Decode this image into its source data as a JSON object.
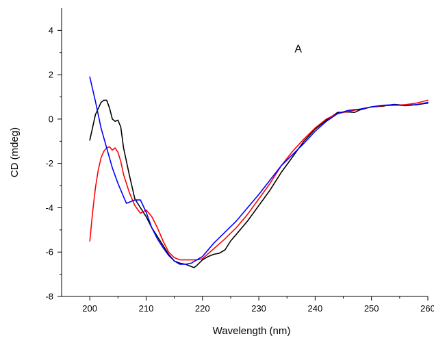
{
  "chart_data": {
    "type": "line",
    "title": "",
    "xlabel": "Wavelength (nm)",
    "ylabel": "CD (mdeg)",
    "xlim": [
      195,
      260
    ],
    "ylim": [
      -8,
      5
    ],
    "xticks": [
      200,
      210,
      220,
      230,
      240,
      250,
      260
    ],
    "yticks": [
      -8,
      -6,
      -4,
      -2,
      0,
      2,
      4
    ],
    "grid": false,
    "legend": "none",
    "annotations": [
      {
        "text": "A",
        "x": 237,
        "y": 3.2
      }
    ],
    "series": [
      {
        "color": "#000000",
        "x": [
          200,
          201,
          202,
          202.5,
          203,
          203.5,
          204,
          204.5,
          205,
          205.5,
          206,
          207,
          208,
          209,
          210,
          211,
          212,
          213,
          214,
          215,
          216,
          217,
          218,
          218.5,
          219,
          220,
          221,
          222,
          223,
          224,
          225,
          226,
          228,
          230,
          232,
          234,
          236,
          238,
          240,
          242,
          244,
          246,
          247,
          248,
          250,
          252,
          254,
          256,
          258,
          260
        ],
        "y": [
          -0.95,
          0.2,
          0.75,
          0.85,
          0.85,
          0.5,
          0.0,
          -0.1,
          -0.05,
          -0.35,
          -1.3,
          -2.5,
          -3.6,
          -4.0,
          -4.4,
          -4.9,
          -5.3,
          -5.7,
          -6.1,
          -6.4,
          -6.5,
          -6.55,
          -6.65,
          -6.7,
          -6.6,
          -6.35,
          -6.2,
          -6.1,
          -6.05,
          -5.9,
          -5.5,
          -5.2,
          -4.6,
          -3.9,
          -3.2,
          -2.4,
          -1.7,
          -1.0,
          -0.45,
          -0.05,
          0.3,
          0.32,
          0.3,
          0.42,
          0.55,
          0.58,
          0.66,
          0.62,
          0.65,
          0.72
        ]
      },
      {
        "color": "#ff0000",
        "x": [
          200,
          200.5,
          201,
          201.5,
          202,
          202.5,
          203,
          203.5,
          204,
          204.5,
          205,
          205.5,
          206,
          207,
          208,
          209,
          210,
          211,
          212,
          213,
          214,
          215,
          216,
          217,
          218,
          219,
          220,
          222,
          224,
          226,
          228,
          230,
          232,
          234,
          236,
          238,
          240,
          242,
          244,
          246,
          248,
          250,
          252,
          254,
          256,
          258,
          260
        ],
        "y": [
          -5.5,
          -4.2,
          -3.1,
          -2.3,
          -1.75,
          -1.45,
          -1.3,
          -1.25,
          -1.4,
          -1.3,
          -1.5,
          -1.9,
          -2.5,
          -3.3,
          -3.9,
          -4.25,
          -4.1,
          -4.4,
          -4.9,
          -5.5,
          -6.0,
          -6.25,
          -6.35,
          -6.35,
          -6.35,
          -6.35,
          -6.3,
          -5.85,
          -5.4,
          -4.9,
          -4.3,
          -3.6,
          -2.9,
          -2.1,
          -1.45,
          -0.9,
          -0.4,
          0.0,
          0.25,
          0.35,
          0.45,
          0.55,
          0.6,
          0.62,
          0.65,
          0.72,
          0.85
        ]
      },
      {
        "color": "#0000ff",
        "x": [
          200,
          201,
          202,
          203,
          204,
          205,
          206,
          206.5,
          207,
          208,
          209,
          210,
          211,
          212,
          213,
          214,
          215,
          216,
          217,
          218,
          219,
          220,
          222,
          224,
          226,
          228,
          230,
          232,
          234,
          236,
          238,
          240,
          242,
          244,
          246,
          248,
          250,
          252,
          254,
          256,
          258,
          260
        ],
        "y": [
          1.9,
          0.8,
          -0.4,
          -1.3,
          -2.2,
          -2.9,
          -3.5,
          -3.8,
          -3.75,
          -3.65,
          -3.65,
          -4.2,
          -4.9,
          -5.4,
          -5.8,
          -6.15,
          -6.4,
          -6.55,
          -6.55,
          -6.5,
          -6.35,
          -6.2,
          -5.6,
          -5.1,
          -4.6,
          -4.0,
          -3.4,
          -2.75,
          -2.1,
          -1.6,
          -1.1,
          -0.55,
          -0.1,
          0.25,
          0.4,
          0.45,
          0.55,
          0.62,
          0.65,
          0.6,
          0.65,
          0.75
        ]
      }
    ]
  }
}
